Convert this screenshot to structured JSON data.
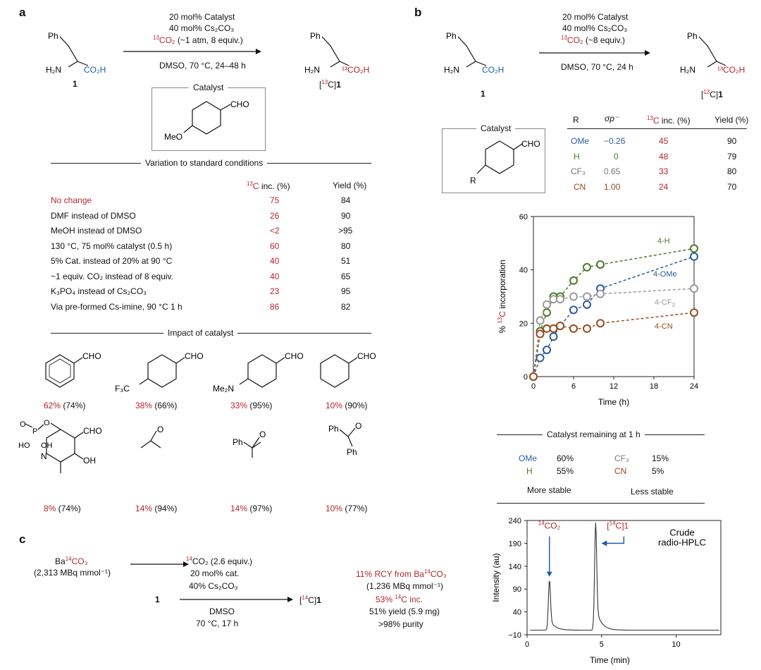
{
  "panel_a": {
    "label": "a",
    "reaction": {
      "substrate_label": "1",
      "product_label_pre": "[",
      "product_label_iso": "13",
      "product_label_post": "C]",
      "product_label_num": "1",
      "cond1": "20 mol% Catalyst",
      "cond2": "40 mol% Cs₂CO₃",
      "cond3_iso": "13",
      "cond3_rest": "CO₂",
      "cond3_tail": " (~1 atm, 8 equiv.)",
      "cond4": "DMSO, 70 °C, 24–48 h",
      "catalyst_title": "Catalyst"
    },
    "variation": {
      "title": "Variation to standard conditions",
      "col_inc_iso": "13",
      "col_inc": "C inc. (%)",
      "col_yield": "Yield (%)",
      "rows": [
        {
          "condition": "No change",
          "inc": "75",
          "yield": "84"
        },
        {
          "condition": "DMF instead of DMSO",
          "inc": "26",
          "yield": "90"
        },
        {
          "condition": "MeOH instead of DMSO",
          "inc": "<2",
          "yield": ">95"
        },
        {
          "condition": "130 °C, 75 mol% catalyst (0.5 h)",
          "inc": "60",
          "yield": "80"
        },
        {
          "condition": "5% Cat. instead of 20% at 90 °C",
          "inc": "40",
          "yield": "51"
        },
        {
          "condition": "~1 equiv. CO₂ instead of 8 equiv.",
          "inc": "40",
          "yield": "65"
        },
        {
          "condition": "K₃PO₄ instead of Cs₂CO₃",
          "inc": "23",
          "yield": "95"
        },
        {
          "condition": "Via pre-formed Cs-imine, 90 °C 1 h",
          "inc": "86",
          "yield": "82"
        }
      ]
    },
    "impact": {
      "title": "Impact of catalyst",
      "items": [
        {
          "inc": "62%",
          "yield": "(74%)"
        },
        {
          "inc": "38%",
          "yield": "(66%)"
        },
        {
          "inc": "33%",
          "yield": "(95%)"
        },
        {
          "inc": "10%",
          "yield": "(90%)"
        },
        {
          "inc": "8%",
          "yield": "(74%)"
        },
        {
          "inc": "14%",
          "yield": "(94%)"
        },
        {
          "inc": "14%",
          "yield": "(97%)"
        },
        {
          "inc": "10%",
          "yield": "(77%)"
        }
      ]
    }
  },
  "panel_b": {
    "label": "b",
    "reaction": {
      "cond1": "20 mol% Catalyst",
      "cond2": "40 mol% Cs₂CO₃",
      "cond3_iso": "13",
      "cond3_rest": "CO₂",
      "cond3_tail": " (~8 equiv.)",
      "cond4": "DMSO, 70 °C, 24 h",
      "substrate_label": "1",
      "catalyst_title": "Catalyst"
    },
    "table": {
      "col_r": "R",
      "col_sigma": "σp⁻",
      "col_inc_iso": "13",
      "col_inc": "C inc. (%)",
      "col_yield": "Yield (%)",
      "rows": [
        {
          "r": "OMe",
          "sigma": "−0.26",
          "inc": "45",
          "yield": "90",
          "color": "#2a5d9a"
        },
        {
          "r": "H",
          "sigma": "0",
          "inc": "48",
          "yield": "79",
          "color": "#4a7a2a"
        },
        {
          "r": "CF₃",
          "sigma": "0.65",
          "inc": "33",
          "yield": "80",
          "color": "#777777"
        },
        {
          "r": "CN",
          "sigma": "1.00",
          "inc": "24",
          "yield": "70",
          "color": "#9a4a1f"
        }
      ]
    },
    "remaining": {
      "title": "Catalyst remaining at 1 h",
      "items": [
        {
          "r": "OMe",
          "value": "60%",
          "color": "#2a5d9a"
        },
        {
          "r": "H",
          "value": "55%",
          "color": "#4a7a2a"
        },
        {
          "r": "CF₃",
          "value": "15%",
          "color": "#777777"
        },
        {
          "r": "CN",
          "value": "5%",
          "color": "#9a4a1f"
        }
      ],
      "more_stable": "More stable",
      "less_stable": "Less stable"
    }
  },
  "panel_c": {
    "label": "c",
    "ba_pre": "Ba",
    "ba_iso": "14",
    "ba_post": "CO₃",
    "ba_activity": "(2,313 MBq mmol⁻¹)",
    "co2_iso": "14",
    "co2_rest": "CO₂ (2.6 equiv.)",
    "cond2": "20 mol% cat.",
    "cond3": "40% Cs₂CO₃",
    "cond4": "DMSO",
    "cond5": "70 °C, 17 h",
    "substrate_label": "1",
    "product_pre": "[",
    "product_iso": "14",
    "product_post": "C]",
    "product_num": "1",
    "result1": "11% RCY from Ba",
    "result1_iso": "14",
    "result1_post": "CO₃",
    "result2": "(1,236 MBq mmol⁻¹)",
    "result3_pre": "53% ",
    "result3_iso": "14",
    "result3_post": "C inc.",
    "result4": "51% yield (5.9 mg)",
    "result5": ">98% purity"
  },
  "chart_data": [
    {
      "type": "scatter",
      "subtype": "line-with-markers",
      "xlabel": "Time (h)",
      "ylabel": "% 13C incorporation",
      "xlim": [
        0,
        24
      ],
      "ylim": [
        0,
        60
      ],
      "xticks": [
        0,
        6,
        12,
        18,
        24
      ],
      "yticks": [
        0,
        20,
        40,
        60
      ],
      "series": [
        {
          "name": "4-H",
          "color": "#4a7a2a",
          "x": [
            0,
            1,
            2,
            3,
            4,
            6,
            8,
            10,
            24
          ],
          "y": [
            0,
            17,
            24,
            30,
            30,
            36,
            41,
            42,
            48
          ]
        },
        {
          "name": "4-OMe",
          "color": "#2a5d9a",
          "x": [
            0,
            1,
            2,
            3,
            4,
            6,
            8,
            10,
            24
          ],
          "y": [
            0,
            7,
            10,
            15,
            19,
            25,
            27,
            33,
            45
          ]
        },
        {
          "name": "4-CF3",
          "color": "#9a9a9a",
          "x": [
            0,
            1,
            2,
            3,
            4,
            6,
            8,
            10,
            24
          ],
          "y": [
            0,
            21,
            27,
            29,
            29,
            30,
            30,
            31,
            33
          ]
        },
        {
          "name": "4-CN",
          "color": "#9a4a1f",
          "x": [
            0,
            1,
            2,
            3,
            4,
            6,
            8,
            10,
            24
          ],
          "y": [
            0,
            16,
            18,
            18,
            19,
            18,
            18,
            20,
            24
          ]
        }
      ],
      "labels": {
        "h": "4-H",
        "ome": "4-OMe",
        "cf3": "4-CF",
        "cf3_sub": "3",
        "cn": "4-CN"
      }
    },
    {
      "type": "line",
      "title": "Crude radio-HPLC",
      "title_line1": "Crude",
      "title_line2": "radio-HPLC",
      "xlabel": "Time (min)",
      "ylabel": "Intensity (au)",
      "xlim": [
        0,
        13
      ],
      "ylim": [
        -10,
        240
      ],
      "xticks": [
        0,
        5,
        10
      ],
      "yticks": [
        -10,
        40,
        90,
        140,
        190,
        240
      ],
      "peaks": [
        {
          "label_iso": "14",
          "label": "CO₂",
          "x": 1.5,
          "height": 110
        },
        {
          "label_pre": "[",
          "label_iso": "14",
          "label": "C]1",
          "x": 4.6,
          "height": 235
        }
      ]
    }
  ]
}
